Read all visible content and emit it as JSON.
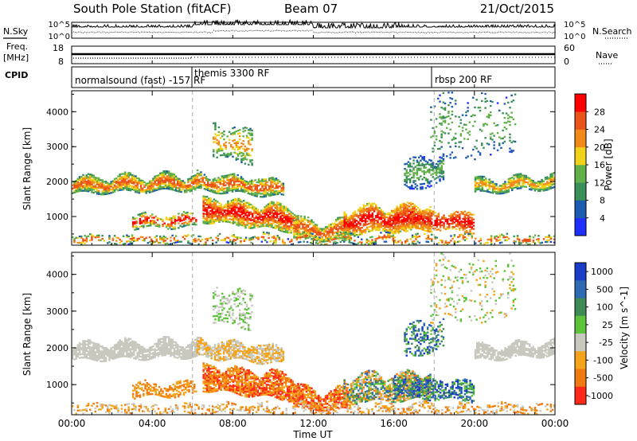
{
  "header": {
    "station": "South Pole Station (fitACF)",
    "beam": "Beam 07",
    "date": "21/Oct/2015"
  },
  "left_labels": {
    "nsky": "N.Sky",
    "freq_line1": "Freq.",
    "freq_line2": "[MHz]",
    "cpid": "CPID"
  },
  "right_labels": {
    "nsearch": "N.Search",
    "nave": "Nave"
  },
  "noise_panel": {
    "left_ticks": [
      "10^5",
      "10^0"
    ],
    "right_ticks": [
      "10^5",
      "10^0"
    ]
  },
  "freq_panel": {
    "left_ticks": [
      "18",
      "8"
    ],
    "right_ticks": [
      "60",
      "0"
    ]
  },
  "cpid_panel": {
    "modes": [
      {
        "label": "normalsound (fast) -157 RF",
        "start": "00:00"
      },
      {
        "label": "themis 3300 RF",
        "start": "06:00"
      },
      {
        "label": "rbsp 200 RF",
        "start": "18:00"
      }
    ]
  },
  "colors": {
    "power_scale": [
      "#1f2fff",
      "#1d5bb0",
      "#3a8f5a",
      "#62b04a",
      "#f1d21b",
      "#f28a1a",
      "#e8541a",
      "#ff0000"
    ],
    "velocity_scale": [
      "#1a3dc8",
      "#2f6bb3",
      "#3f8a55",
      "#5cc33a",
      "#c8c8bf",
      "#f3a41a",
      "#f07a12",
      "#ff2a1a"
    ]
  },
  "chart_data": [
    {
      "type": "heatmap",
      "panel": "power",
      "ylabel": "Slant Range [km]",
      "xlabel": "Time UT",
      "x_ticks": [
        "00:00",
        "04:00",
        "08:00",
        "12:00",
        "16:00",
        "20:00",
        "00:00"
      ],
      "y_ticks": [
        "1000",
        "2000",
        "3000",
        "4000"
      ],
      "ylim": [
        180,
        4600
      ],
      "colorbar": {
        "label": "Power [dB]",
        "ticks": [
          "4",
          "8",
          "12",
          "16",
          "20",
          "24",
          "28"
        ]
      },
      "dashed_lines_ut": [
        "06:00",
        "18:00"
      ]
    },
    {
      "type": "heatmap",
      "panel": "velocity",
      "ylabel": "Slant Range [km]",
      "xlabel": "Time UT",
      "x_ticks": [
        "00:00",
        "04:00",
        "08:00",
        "12:00",
        "16:00",
        "20:00",
        "00:00"
      ],
      "y_ticks": [
        "1000",
        "2000",
        "3000",
        "4000"
      ],
      "ylim": [
        180,
        4600
      ],
      "colorbar": {
        "label": "Velocity [m s^-1]",
        "ticks": [
          "1000",
          "500",
          "100",
          "25",
          "-25",
          "-100",
          "-500",
          "-1000"
        ]
      },
      "dashed_lines_ut": [
        "06:00",
        "18:00"
      ]
    }
  ]
}
